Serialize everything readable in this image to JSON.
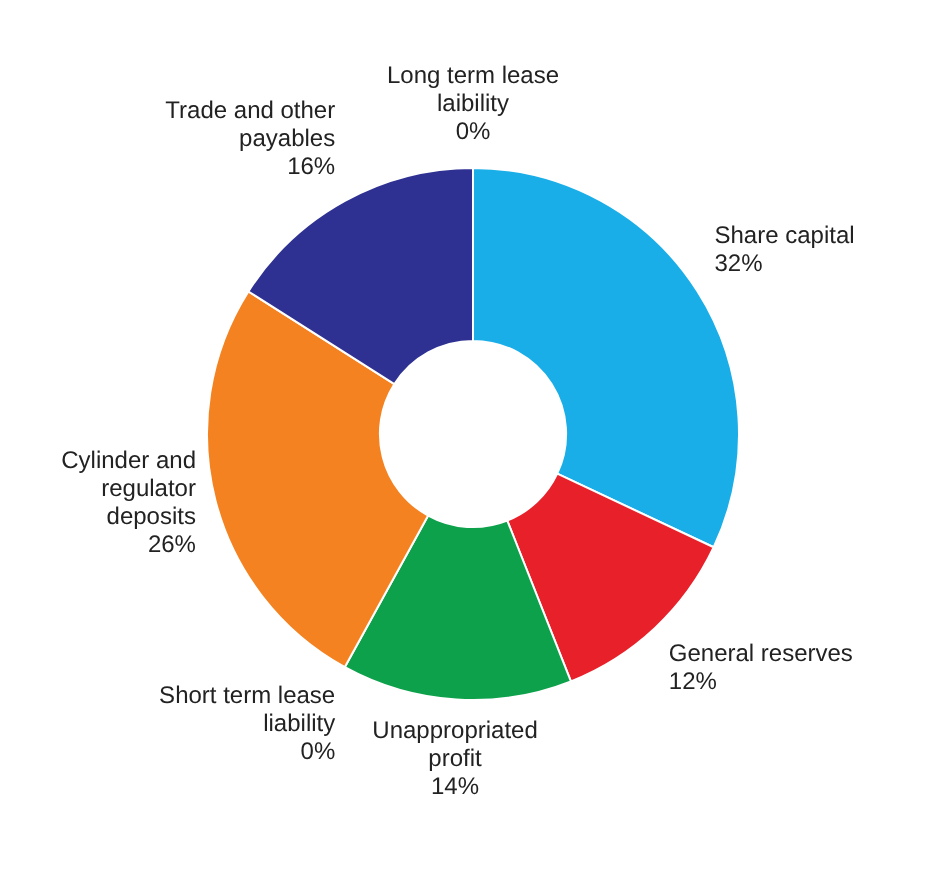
{
  "chart_data": {
    "type": "donut",
    "categories": [
      "Share capital",
      "General reserves",
      "Unappropriated profit",
      "Short term lease liability",
      "Cylinder and regulator deposits",
      "Trade and other payables",
      "Long term lease laibility"
    ],
    "values": [
      32,
      12,
      14,
      0,
      26,
      16,
      0
    ],
    "colors": [
      "#1aaee8",
      "#e8202a",
      "#0ea14b",
      "#b02d6e",
      "#f58220",
      "#2e3192",
      "#ffe100"
    ],
    "value_labels": [
      "32%",
      "12%",
      "14%",
      "0%",
      "26%",
      "16%",
      "0%"
    ],
    "legend": false
  }
}
